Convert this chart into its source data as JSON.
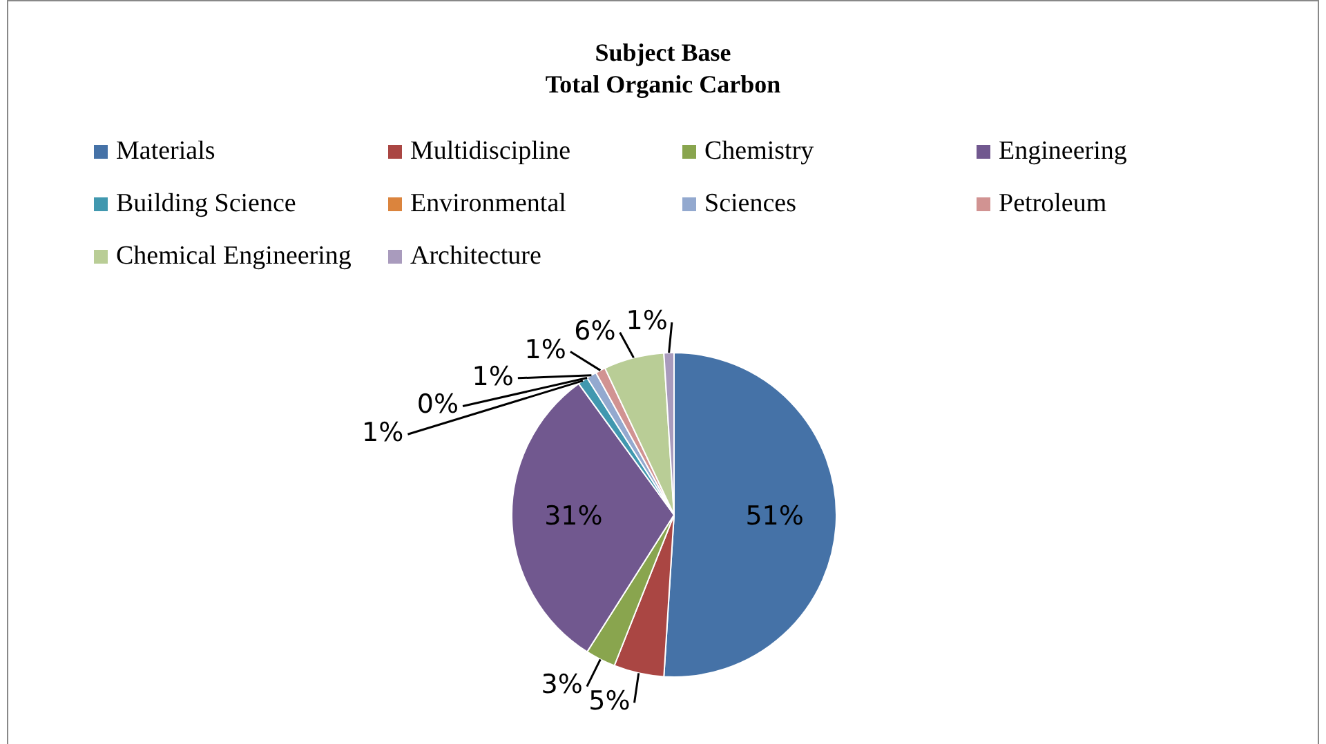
{
  "chart_data": {
    "type": "pie",
    "title": "Subject Base\nTotal Organic Carbon",
    "categories": [
      "Materials",
      "Multidiscipline",
      "Chemistry",
      "Engineering",
      "Building Science",
      "Environmental",
      "Sciences",
      "Petroleum",
      "Chemical Engineering",
      "Architecture"
    ],
    "values": [
      51,
      5,
      3,
      31,
      1,
      0,
      1,
      1,
      6,
      1
    ],
    "colors": [
      "#4572a7",
      "#aa4643",
      "#89a54e",
      "#71588f",
      "#4198af",
      "#db843d",
      "#93a9cf",
      "#d19392",
      "#b9cd96",
      "#a99bbd"
    ],
    "value_labels": [
      "51%",
      "5%",
      "3%",
      "31%",
      "1%",
      "0%",
      "1%",
      "1%",
      "6%",
      "1%"
    ],
    "legend": "top"
  }
}
